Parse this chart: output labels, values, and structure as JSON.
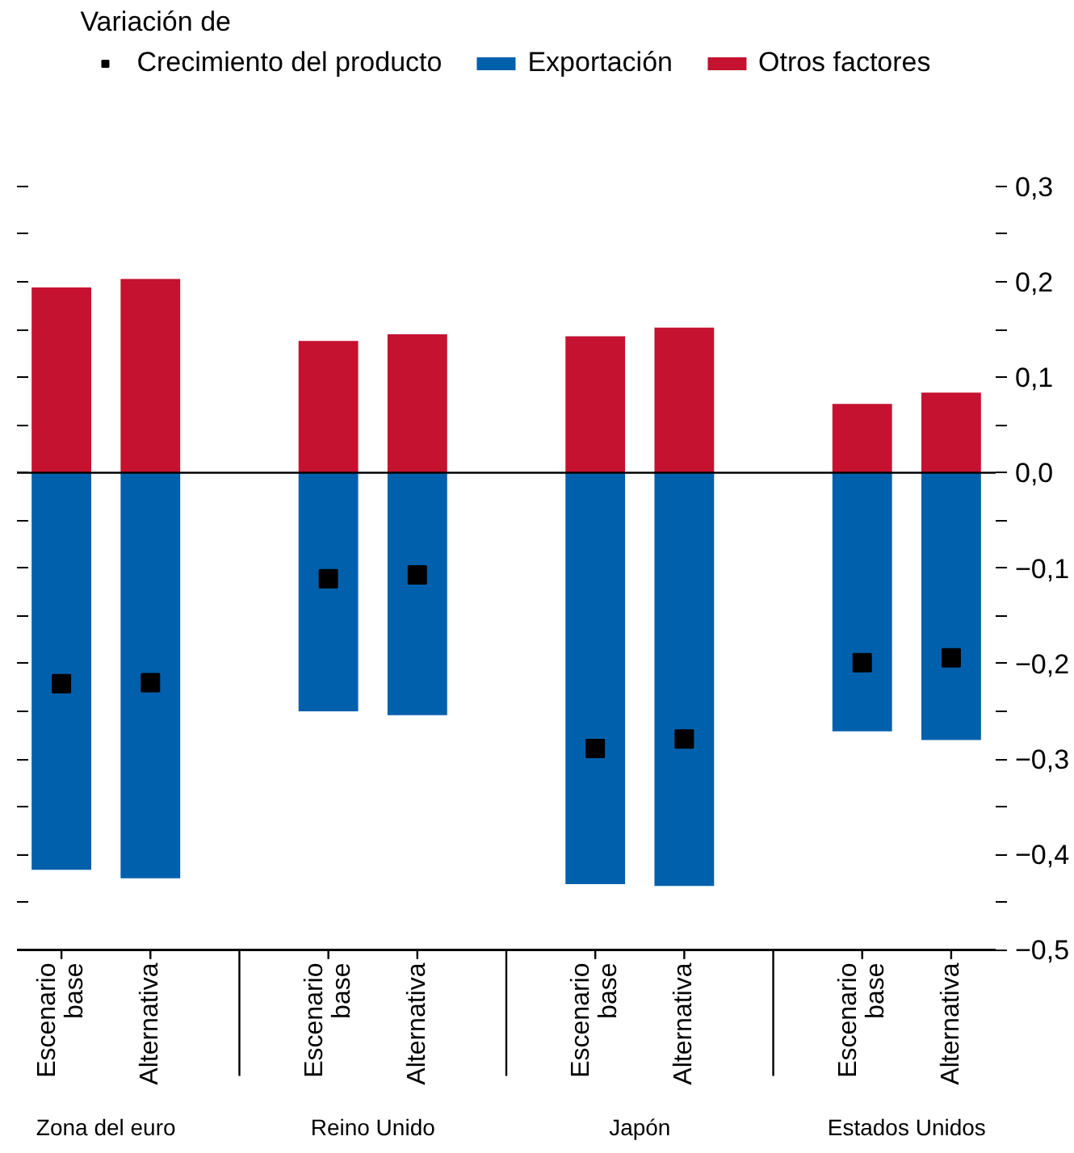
{
  "chart_data": {
    "type": "bar",
    "stacked": true,
    "legend_title": "Variación de",
    "legend": "top",
    "categories": [
      "Escenario base",
      "Alternativa",
      "Escenario base",
      "Alternativa",
      "Escenario base",
      "Alternativa",
      "Escenario base",
      "Alternativa"
    ],
    "series": [
      {
        "name": "Crecimiento del producto",
        "type": "scatter",
        "marker": "square",
        "color": "#000000",
        "values": [
          -0.221,
          -0.22,
          -0.111,
          -0.107,
          -0.289,
          -0.279,
          -0.199,
          -0.194
        ]
      },
      {
        "name": "Exportación",
        "color": "#0060ac",
        "values": [
          -0.416,
          -0.425,
          -0.25,
          -0.254,
          -0.431,
          -0.433,
          -0.271,
          -0.28
        ]
      },
      {
        "name": "Otros factores",
        "color": "#c41230",
        "values": [
          0.194,
          0.203,
          0.138,
          0.145,
          0.143,
          0.152,
          0.072,
          0.084
        ]
      }
    ],
    "annotations": [
      "Zona del euro",
      "Reino Unido",
      "Japón",
      "Estados Unidos"
    ],
    "ylim": [
      -0.5,
      0.3
    ],
    "yticks": [
      {
        "value": 0.3,
        "label": "0,3"
      },
      {
        "value": 0.25,
        "label": null
      },
      {
        "value": 0.2,
        "label": "0,2"
      },
      {
        "value": 0.15,
        "label": null
      },
      {
        "value": 0.1,
        "label": "0,1"
      },
      {
        "value": 0.05,
        "label": null
      },
      {
        "value": 0.0,
        "label": "0,0"
      },
      {
        "value": -0.05,
        "label": null
      },
      {
        "value": -0.1,
        "label": "−0,1"
      },
      {
        "value": -0.15,
        "label": null
      },
      {
        "value": -0.2,
        "label": "−0,2"
      },
      {
        "value": -0.25,
        "label": null
      },
      {
        "value": -0.3,
        "label": "−0,3"
      },
      {
        "value": -0.35,
        "label": null
      },
      {
        "value": -0.4,
        "label": "−0,4"
      },
      {
        "value": -0.45,
        "label": null
      },
      {
        "value": -0.5,
        "label": "−0,5"
      }
    ],
    "ref_lines": [
      {
        "axis": "y",
        "value": 0.0,
        "color": "#000000"
      }
    ],
    "grid": false
  }
}
